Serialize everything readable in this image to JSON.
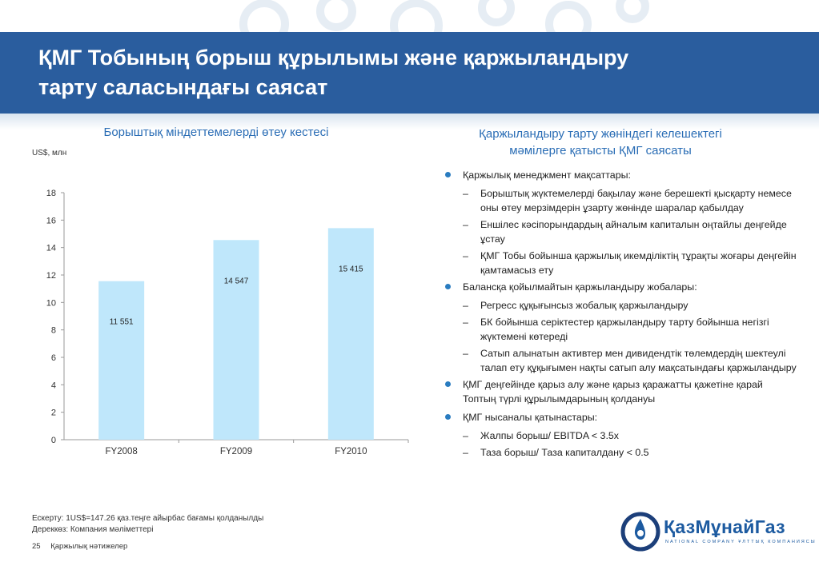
{
  "header": {
    "title_line1": "ҚМГ Тобының борыш құрылымы және қаржыландыру",
    "title_line2": "тарту саласындағы саясат"
  },
  "left": {
    "title": "Борыштық міндеттемелерді өтеу кестесі",
    "unit": "US$, млн"
  },
  "chart_data": {
    "type": "bar",
    "title": "",
    "xlabel": "",
    "ylabel": "",
    "categories": [
      "FY2008",
      "FY2009",
      "FY2010"
    ],
    "values": [
      11.551,
      14.547,
      15.415
    ],
    "data_labels": [
      "11 551",
      "14 547",
      "15 415"
    ],
    "ylim": [
      0,
      18
    ],
    "yticks": [
      "0",
      "2",
      "4",
      "6",
      "8",
      "10",
      "12",
      "14",
      "16",
      "18"
    ],
    "grid": false,
    "legend": "none",
    "bar_color": "#bfe7fb"
  },
  "right": {
    "title_line1": "Қаржыландыру тарту жөніндегі келешектегі",
    "title_line2": "мәмілерге қатысты ҚМГ саясаты",
    "bullets": [
      {
        "text": "Қаржылық менеджмент мақсаттары:",
        "subs": [
          "Борыштық жүктемелерді бақылау және берешекті қысқарту немесе оны өтеу мерзімдерін ұзарту жөнінде шаралар қабылдау",
          "Еншілес кәсіпорындардың айналым капиталын оңтайлы деңгейде ұстау",
          "ҚМГ Тобы бойынша қаржылық икемділіктің тұрақты жоғары деңгейін қамтамасыз ету"
        ]
      },
      {
        "text": "Балансқа қойылмайтын қаржыландыру жобалары:",
        "subs": [
          "Регресс құқығынсыз жобалық қаржыландыру",
          "БК бойынша серіктестер қаржыландыру тарту бойынша негізгі жүктемені көтереді",
          "Сатып алынатын активтер мен дивидендтік төлемдердің шектеулі талап ету құқығымен нақты  сатып алу мақсатындағы қаржыландыру"
        ]
      },
      {
        "text": "ҚМГ деңгейінде қарыз алу және қарыз қаражатты қажетіне қарай Топтың түрлі құрылымдарының қолдануы",
        "subs": []
      },
      {
        "text": "ҚМГ нысаналы қатынастары:",
        "subs": [
          "Жалпы борыш/ EBITDA < 3.5x",
          "Таза борыш/ Таза капиталдану < 0.5"
        ]
      }
    ]
  },
  "footer": {
    "note1": "Ескерту: 1US$=147.26 қаз.теңге айырбас бағамы қолданылды",
    "note2": "Дереккөз: Компания мәліметтері",
    "page_number": "25",
    "section": "Қаржылық нәтижелер"
  },
  "logo": {
    "brand": "ҚазМұнайГаз",
    "subtitle": "NATIONAL COMPANY ҰЛТТЫҚ КОМПАНИЯСЫ"
  },
  "colors": {
    "banner": "#2a5d9e",
    "accent_text": "#2a6db5",
    "bullet": "#2a7cc0",
    "bar": "#bfe7fb"
  }
}
